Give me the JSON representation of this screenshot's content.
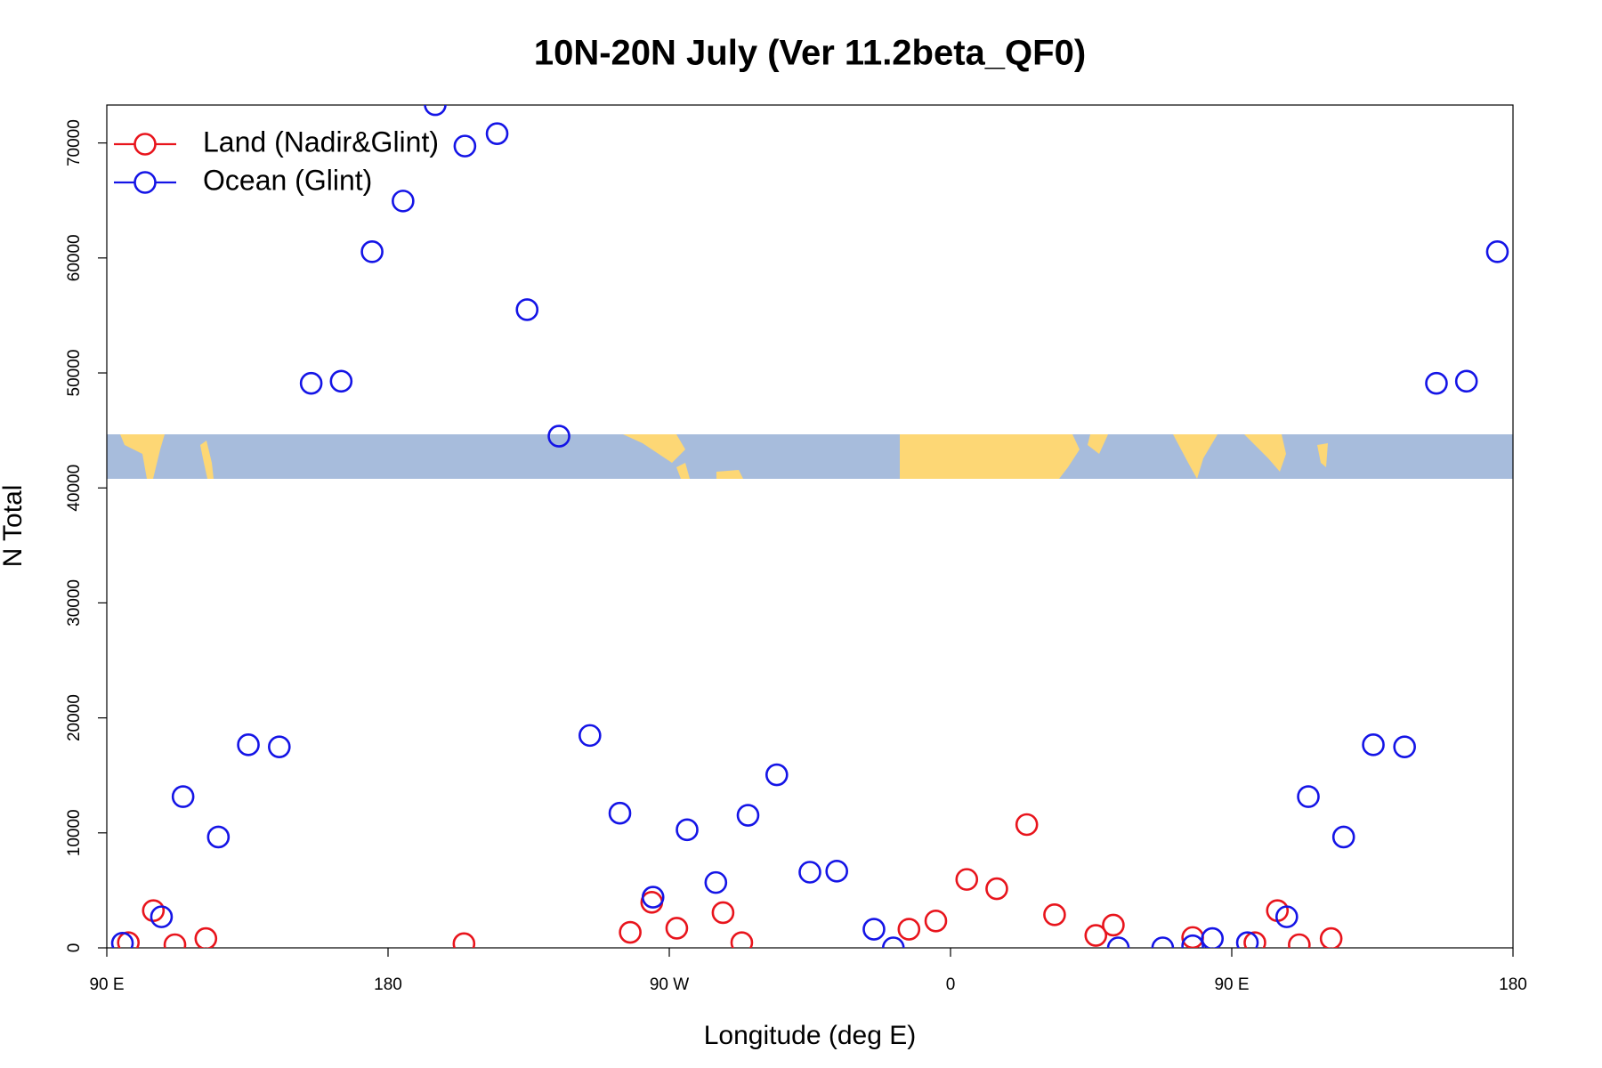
{
  "chart_data": {
    "type": "scatter",
    "title": "10N-20N July (Ver 11.2beta_QF0)",
    "x_label": "Longitude (deg E)",
    "y_label": "N Total",
    "xlim": [
      90,
      540
    ],
    "ylim": [
      0,
      73300
    ],
    "xticks": [
      {
        "value": 90,
        "label": "90 E"
      },
      180,
      {
        "value": 270,
        "label": "90 W"
      },
      {
        "value": 360,
        "label": "0"
      },
      {
        "value": 450,
        "label": "90 E"
      },
      {
        "value": 540,
        "label": "180"
      }
    ],
    "yticks": [
      0,
      10000,
      20000,
      30000,
      40000,
      50000,
      60000,
      70000
    ],
    "legend": "topleft",
    "series": [
      {
        "name": "Land (Nadir&Glint)",
        "color": "#e8141c",
        "x": [
          96.9,
          104.9,
          111.8,
          121.7,
          204.3,
          257.5,
          264.4,
          272.4,
          287.2,
          293.2,
          346.7,
          355.3,
          365.2,
          374.8,
          384.4,
          393.3,
          406.5,
          412.1,
          437.5,
          457.4,
          464.6,
          471.6,
          481.8
        ],
        "values": [
          450,
          3240,
          270,
          810,
          360,
          1350,
          3960,
          1710,
          3060,
          450,
          1620,
          2340,
          5950,
          5140,
          10720,
          2880,
          1080,
          1980,
          900,
          450,
          3240,
          270,
          810
        ]
      },
      {
        "name": "Ocean (Glint)",
        "color": "#1414e6",
        "x": [
          95,
          107.5,
          114.4,
          125.7,
          135.3,
          145.2,
          155.4,
          165,
          174.9,
          184.8,
          195.1,
          204.6,
          214.9,
          224.5,
          234.7,
          244.6,
          254.2,
          264.8,
          275.7,
          284.9,
          295.2,
          304.4,
          315,
          323.6,
          335.5,
          341.7,
          413.7,
          427.9,
          437.5,
          443.8,
          455,
          467.6,
          474.5,
          485.8,
          495.3,
          505.3,
          515.5,
          525.1,
          535
        ],
        "values": [
          400,
          2700,
          13150,
          9640,
          17660,
          17480,
          49100,
          49280,
          60540,
          64950,
          73330,
          69730,
          70810,
          55500,
          44500,
          18470,
          11710,
          4410,
          10270,
          5680,
          11530,
          15050,
          6580,
          6670,
          1620,
          0,
          0,
          0,
          180,
          810,
          450,
          2700,
          13150,
          9640,
          17660,
          17480,
          49100,
          49280,
          60540
        ]
      }
    ]
  }
}
